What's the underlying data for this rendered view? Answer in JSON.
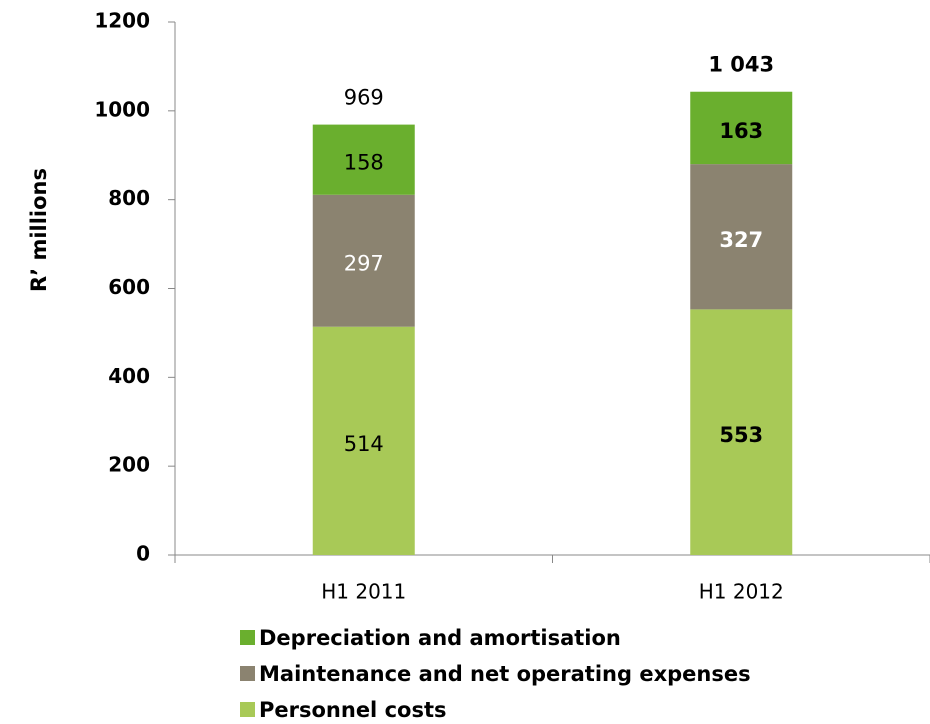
{
  "chart_data": {
    "type": "stacked_bar",
    "y_label": "R’ millions",
    "categories": [
      "H1 2011",
      "H1 2012"
    ],
    "series": [
      {
        "name": "Personnel costs",
        "color": "#a8c957",
        "values": [
          514,
          553
        ]
      },
      {
        "name": "Maintenance and net operating expenses",
        "color": "#8b8370",
        "values": [
          297,
          327
        ]
      },
      {
        "name": "Depreciation and amortisation",
        "color": "#6aaf2e",
        "values": [
          158,
          163
        ]
      }
    ],
    "totals": [
      969,
      1043
    ],
    "total_labels": [
      "969",
      "1 043"
    ],
    "ylim": [
      0,
      1200
    ],
    "yticks": [
      0,
      200,
      400,
      600,
      800,
      1000,
      1200
    ]
  }
}
